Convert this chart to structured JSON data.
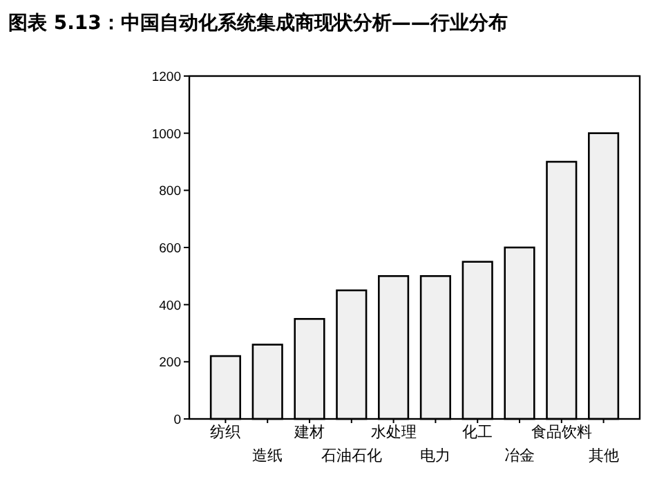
{
  "chart_data": {
    "type": "bar",
    "title": "图表 5.13：中国自动化系统集成商现状分析——行业分布",
    "categories": [
      "纺织",
      "造纸",
      "建材",
      "石油石化",
      "水处理",
      "电力",
      "化工",
      "冶金",
      "食品饮料",
      "其他"
    ],
    "values": [
      220,
      260,
      350,
      450,
      500,
      500,
      550,
      600,
      900,
      1000
    ],
    "color": "#f0f0f0",
    "ylim": [
      0,
      1200
    ],
    "yticks": [
      0,
      200,
      400,
      600,
      800,
      1000,
      1200
    ],
    "grid": false
  }
}
